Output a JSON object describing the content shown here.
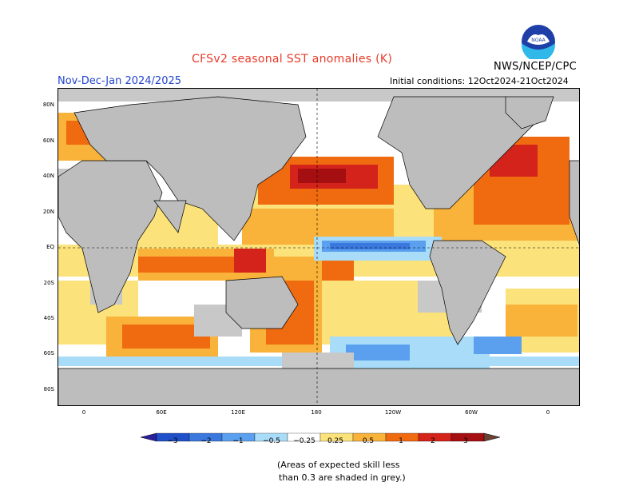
{
  "header": {
    "title": "CFSv2 seasonal SST anomalies (K)",
    "season": "Nov-Dec-Jan 2024/2025",
    "initial_conditions": "Initial conditions: 12Oct2024-21Oct2024",
    "org": "NWS/NCEP/CPC",
    "logo_text": "NOAA"
  },
  "axes": {
    "lat_labels": [
      "80N",
      "60N",
      "40N",
      "20N",
      "EQ",
      "20S",
      "40S",
      "60S",
      "80S"
    ],
    "lon_labels": [
      "0",
      "60E",
      "120E",
      "180",
      "120W",
      "60W",
      "0"
    ]
  },
  "legend": {
    "ticks": [
      "−3",
      "−2",
      "−1",
      "−0.5",
      "−0.25",
      "0.25",
      "0.5",
      "1",
      "2",
      "3"
    ],
    "colors": [
      "#2b1f9e",
      "#1f4fc9",
      "#3a78dd",
      "#5aa0ee",
      "#a8dcf8",
      "#ffffff",
      "#fbe27a",
      "#f9b23a",
      "#f06a10",
      "#d3231a",
      "#a50f12",
      "#6b4234"
    ],
    "note_line1": "(Areas of expected skill less",
    "note_line2": "than 0.3 are shaded in grey.)"
  },
  "colors": {
    "land": "#bdbdbd",
    "low_skill_grey": "#c8c8c8",
    "title_red": "#e83a2a",
    "season_blue": "#2244cc"
  }
}
